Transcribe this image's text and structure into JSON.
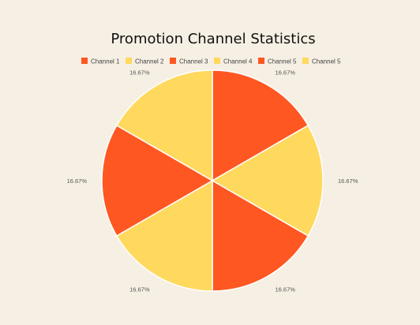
{
  "chart_data": {
    "type": "pie",
    "title": "Promotion Channel Statistics",
    "legend_position": "top",
    "slices": [
      {
        "label": "Channel 1",
        "value": 16.67,
        "display": "16.67%",
        "color": "#ff5722"
      },
      {
        "label": "Channel 2",
        "value": 16.67,
        "display": "16.67%",
        "color": "#ffd95e"
      },
      {
        "label": "Channel 3",
        "value": 16.67,
        "display": "16.67%",
        "color": "#ff5722"
      },
      {
        "label": "Channel 4",
        "value": 16.67,
        "display": "16.67%",
        "color": "#ffd95e"
      },
      {
        "label": "Channel 5",
        "value": 16.67,
        "display": "16.67%",
        "color": "#ff5722"
      },
      {
        "label": "Channel 5",
        "value": 16.67,
        "display": "16.67%",
        "color": "#ffd95e"
      }
    ]
  }
}
